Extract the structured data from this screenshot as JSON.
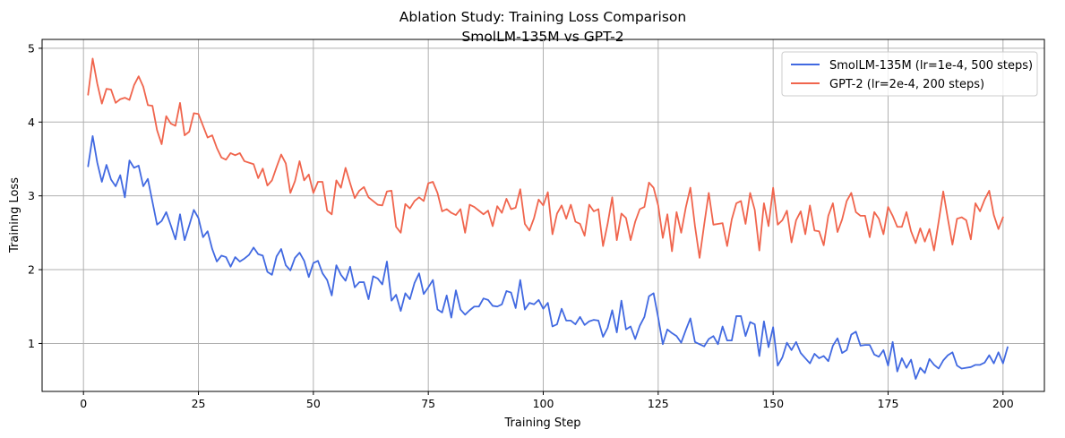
{
  "chart_data": {
    "type": "line",
    "title": "Ablation Study: Training Loss Comparison",
    "subtitle": "SmolLM-135M vs GPT-2",
    "xlabel": "Training Step",
    "ylabel": "Training Loss",
    "xlim": [
      -9,
      209
    ],
    "ylim": [
      0.35,
      5.12
    ],
    "xticks": [
      0,
      25,
      50,
      75,
      100,
      125,
      150,
      175,
      200
    ],
    "yticks": [
      1,
      2,
      3,
      4,
      5
    ],
    "grid": true,
    "legend_position": "top-right",
    "series": [
      {
        "name": "SmolLM-135M (lr=1e-4, 500 steps)",
        "color": "#4169e1",
        "x_start": 1,
        "x_step": 1,
        "values": [
          3.4,
          3.81,
          3.45,
          3.19,
          3.42,
          3.22,
          3.13,
          3.28,
          2.98,
          3.48,
          3.38,
          3.41,
          3.13,
          3.23,
          2.92,
          2.61,
          2.66,
          2.78,
          2.6,
          2.41,
          2.75,
          2.4,
          2.6,
          2.81,
          2.7,
          2.44,
          2.52,
          2.28,
          2.11,
          2.19,
          2.17,
          2.04,
          2.17,
          2.11,
          2.15,
          2.2,
          2.3,
          2.21,
          2.19,
          1.97,
          1.93,
          2.18,
          2.28,
          2.06,
          1.99,
          2.16,
          2.23,
          2.12,
          1.9,
          2.09,
          2.12,
          1.95,
          1.86,
          1.65,
          2.06,
          1.93,
          1.85,
          2.04,
          1.76,
          1.83,
          1.83,
          1.6,
          1.91,
          1.88,
          1.8,
          2.11,
          1.58,
          1.66,
          1.44,
          1.68,
          1.6,
          1.82,
          1.95,
          1.67,
          1.76,
          1.86,
          1.46,
          1.42,
          1.65,
          1.35,
          1.72,
          1.46,
          1.39,
          1.45,
          1.5,
          1.5,
          1.61,
          1.59,
          1.51,
          1.5,
          1.53,
          1.71,
          1.69,
          1.48,
          1.86,
          1.46,
          1.55,
          1.53,
          1.59,
          1.47,
          1.55,
          1.23,
          1.26,
          1.47,
          1.31,
          1.31,
          1.26,
          1.36,
          1.25,
          1.3,
          1.32,
          1.31,
          1.09,
          1.21,
          1.45,
          1.15,
          1.58,
          1.19,
          1.23,
          1.06,
          1.24,
          1.36,
          1.64,
          1.68,
          1.35,
          0.99,
          1.19,
          1.14,
          1.1,
          1.01,
          1.18,
          1.34,
          1.02,
          0.99,
          0.96,
          1.06,
          1.1,
          0.99,
          1.23,
          1.04,
          1.04,
          1.37,
          1.37,
          1.1,
          1.29,
          1.26,
          0.83,
          1.3,
          0.95,
          1.22,
          0.7,
          0.81,
          1.01,
          0.91,
          1.02,
          0.87,
          0.8,
          0.73,
          0.86,
          0.8,
          0.83,
          0.76,
          0.97,
          1.07,
          0.87,
          0.91,
          1.12,
          1.16,
          0.97,
          0.98,
          0.98,
          0.85,
          0.82,
          0.91,
          0.7,
          1.02,
          0.62,
          0.8,
          0.67,
          0.78,
          0.52,
          0.67,
          0.6,
          0.79,
          0.71,
          0.66,
          0.77,
          0.84,
          0.88,
          0.7,
          0.66,
          0.67,
          0.68,
          0.71,
          0.71,
          0.74,
          0.84,
          0.73,
          0.88,
          0.73,
          0.95
        ]
      },
      {
        "name": "GPT-2 (lr=2e-4, 200 steps)",
        "color": "#f0654d",
        "x_start": 1,
        "x_step": 1,
        "values": [
          4.37,
          4.86,
          4.52,
          4.25,
          4.45,
          4.44,
          4.26,
          4.31,
          4.33,
          4.3,
          4.5,
          4.62,
          4.48,
          4.23,
          4.22,
          3.89,
          3.7,
          4.08,
          3.98,
          3.95,
          4.26,
          3.82,
          3.87,
          4.12,
          4.11,
          3.95,
          3.79,
          3.82,
          3.65,
          3.52,
          3.49,
          3.58,
          3.55,
          3.58,
          3.47,
          3.45,
          3.43,
          3.24,
          3.37,
          3.14,
          3.21,
          3.39,
          3.56,
          3.44,
          3.04,
          3.2,
          3.47,
          3.21,
          3.29,
          3.04,
          3.19,
          3.19,
          2.8,
          2.75,
          3.21,
          3.11,
          3.38,
          3.17,
          2.97,
          3.07,
          3.12,
          2.98,
          2.93,
          2.88,
          2.87,
          3.06,
          3.07,
          2.58,
          2.5,
          2.89,
          2.83,
          2.93,
          2.98,
          2.93,
          3.17,
          3.19,
          3.04,
          2.79,
          2.82,
          2.77,
          2.74,
          2.82,
          2.5,
          2.88,
          2.85,
          2.8,
          2.75,
          2.8,
          2.59,
          2.86,
          2.77,
          2.96,
          2.82,
          2.84,
          3.09,
          2.62,
          2.53,
          2.7,
          2.95,
          2.87,
          3.05,
          2.48,
          2.76,
          2.87,
          2.69,
          2.88,
          2.65,
          2.62,
          2.46,
          2.88,
          2.79,
          2.82,
          2.32,
          2.62,
          2.98,
          2.4,
          2.76,
          2.7,
          2.4,
          2.65,
          2.82,
          2.85,
          3.18,
          3.11,
          2.87,
          2.43,
          2.75,
          2.25,
          2.78,
          2.5,
          2.84,
          3.11,
          2.59,
          2.16,
          2.61,
          3.04,
          2.61,
          2.62,
          2.63,
          2.32,
          2.68,
          2.9,
          2.93,
          2.62,
          3.04,
          2.81,
          2.26,
          2.9,
          2.59,
          3.11,
          2.61,
          2.67,
          2.8,
          2.37,
          2.67,
          2.79,
          2.48,
          2.87,
          2.53,
          2.52,
          2.33,
          2.73,
          2.9,
          2.51,
          2.68,
          2.93,
          3.04,
          2.78,
          2.73,
          2.73,
          2.44,
          2.78,
          2.69,
          2.48,
          2.85,
          2.73,
          2.58,
          2.58,
          2.78,
          2.52,
          2.36,
          2.56,
          2.38,
          2.55,
          2.26,
          2.65,
          3.06,
          2.69,
          2.34,
          2.69,
          2.71,
          2.67,
          2.41,
          2.9,
          2.79,
          2.95,
          3.07,
          2.74,
          2.55,
          2.71
        ]
      }
    ]
  }
}
